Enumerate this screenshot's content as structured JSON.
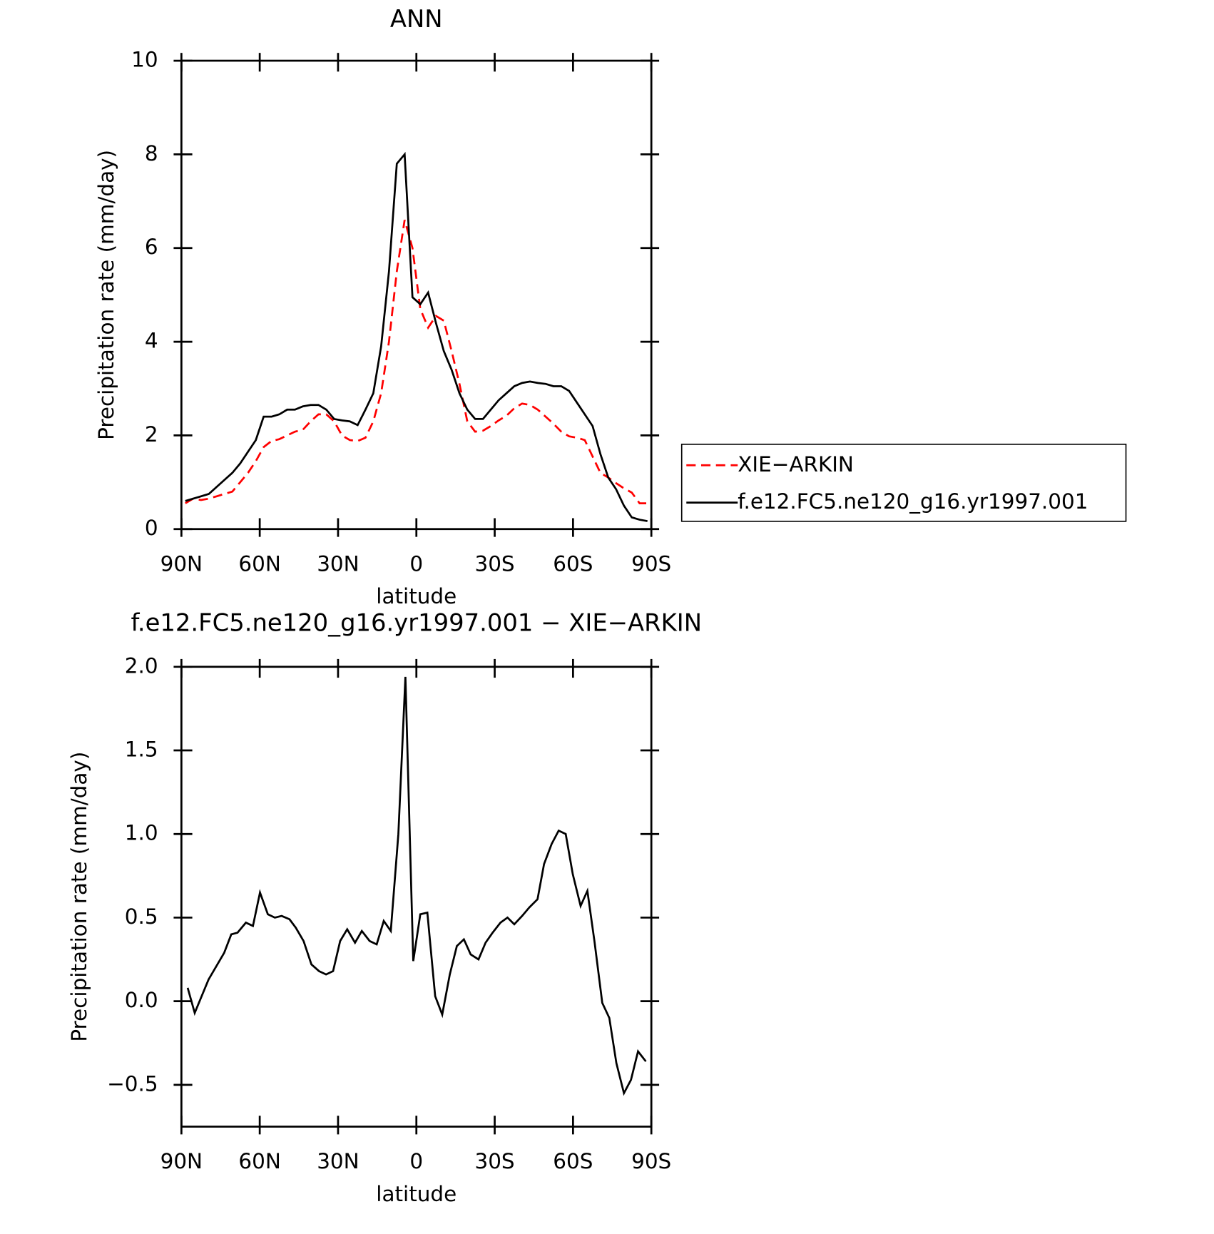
{
  "chart_data": [
    {
      "type": "line",
      "title": "ANN",
      "xlabel": "latitude",
      "ylabel": "Precipitation rate (mm/day)",
      "x": [
        88.5,
        85.5,
        82.5,
        79.5,
        76.5,
        73.5,
        70.5,
        67.5,
        64.5,
        61.5,
        58.5,
        55.5,
        52.5,
        49.5,
        46.5,
        43.5,
        40.5,
        37.5,
        34.5,
        31.5,
        28.5,
        25.5,
        22.5,
        19.5,
        16.5,
        13.5,
        10.5,
        7.5,
        4.5,
        1.5,
        -1.5,
        -4.5,
        -7.5,
        -10.5,
        -13.5,
        -16.5,
        -19.5,
        -22.5,
        -25.5,
        -28.5,
        -31.5,
        -34.5,
        -37.5,
        -40.5,
        -43.5,
        -46.5,
        -49.5,
        -52.5,
        -55.5,
        -58.5,
        -61.5,
        -64.5,
        -67.5,
        -70.5,
        -73.5,
        -76.5,
        -79.5,
        -82.5,
        -85.5,
        -88.5
      ],
      "series": [
        {
          "name": "XIE−ARKIN",
          "color": "#ff0000",
          "dash": true,
          "values": [
            0.55,
            0.65,
            0.62,
            0.65,
            0.7,
            0.75,
            0.8,
            1.0,
            1.2,
            1.45,
            1.75,
            1.88,
            1.92,
            2.0,
            2.08,
            2.12,
            2.3,
            2.45,
            2.45,
            2.3,
            2.0,
            1.9,
            1.88,
            1.95,
            2.3,
            2.9,
            4.0,
            5.5,
            6.6,
            6.0,
            4.7,
            4.3,
            4.55,
            4.45,
            3.8,
            3.1,
            2.3,
            2.08,
            2.1,
            2.2,
            2.32,
            2.42,
            2.58,
            2.68,
            2.65,
            2.55,
            2.4,
            2.25,
            2.08,
            1.98,
            1.95,
            1.9,
            1.55,
            1.2,
            1.1,
            0.98,
            0.87,
            0.78,
            0.55,
            0.55
          ]
        },
        {
          "name": "f.e12.FC5.ne120_g16.yr1997.001",
          "color": "#000000",
          "dash": false,
          "values": [
            0.6,
            0.65,
            0.7,
            0.75,
            0.9,
            1.05,
            1.2,
            1.4,
            1.65,
            1.9,
            2.4,
            2.4,
            2.45,
            2.55,
            2.55,
            2.62,
            2.65,
            2.65,
            2.55,
            2.35,
            2.32,
            2.3,
            2.22,
            2.55,
            2.9,
            3.9,
            5.5,
            7.8,
            8.0,
            4.95,
            4.8,
            5.05,
            4.4,
            3.8,
            3.4,
            2.9,
            2.55,
            2.35,
            2.35,
            2.55,
            2.75,
            2.9,
            3.05,
            3.12,
            3.15,
            3.12,
            3.1,
            3.05,
            3.05,
            2.95,
            2.7,
            2.45,
            2.2,
            1.6,
            1.1,
            0.85,
            0.5,
            0.25,
            0.2,
            0.17
          ]
        }
      ],
      "xlim": [
        90,
        -90
      ],
      "xticks": [
        {
          "value": 90,
          "label": "90N"
        },
        {
          "value": 60,
          "label": "60N"
        },
        {
          "value": 30,
          "label": "30N"
        },
        0,
        {
          "value": -30,
          "label": "30S"
        },
        {
          "value": -60,
          "label": "60S"
        },
        {
          "value": -90,
          "label": "90S"
        }
      ],
      "ylim": [
        0,
        10
      ],
      "yticks": [
        0,
        2,
        4,
        6,
        8,
        10
      ],
      "legend": "right"
    },
    {
      "type": "line",
      "title": "f.e12.FC5.ne120_g16.yr1997.001 − XIE−ARKIN",
      "xlabel": "latitude",
      "ylabel": "Precipitation rate (mm/day)",
      "x": [
        87.6,
        84.9,
        79.6,
        73.6,
        70.9,
        68.5,
        65.3,
        62.6,
        59.9,
        56.9,
        54.2,
        51.6,
        48.6,
        46.2,
        43.2,
        40.2,
        37.3,
        34.6,
        31.9,
        29.2,
        26.5,
        23.5,
        20.9,
        17.9,
        15.2,
        12.5,
        9.8,
        6.9,
        4.2,
        1.2,
        -1.5,
        -4.2,
        -7.2,
        -9.9,
        -12.8,
        -15.5,
        -18.2,
        -20.8,
        -23.8,
        -26.5,
        -29.2,
        -32.2,
        -34.9,
        -37.5,
        -40.5,
        -43.2,
        -46.4,
        -48.9,
        -51.8,
        -54.5,
        -57.2,
        -59.9,
        -62.9,
        -65.5,
        -68.2,
        -71.2,
        -73.9,
        -76.6,
        -79.5,
        -82.2,
        -84.9,
        -87.9
      ],
      "series": [
        {
          "color": "#000000",
          "values": [
            0.08,
            -0.07,
            0.13,
            0.29,
            0.4,
            0.41,
            0.47,
            0.45,
            0.65,
            0.52,
            0.5,
            0.51,
            0.49,
            0.44,
            0.36,
            0.22,
            0.18,
            0.16,
            0.18,
            0.36,
            0.43,
            0.35,
            0.42,
            0.36,
            0.34,
            0.48,
            0.42,
            1.0,
            1.94,
            0.24,
            0.52,
            0.53,
            0.03,
            -0.08,
            0.16,
            0.33,
            0.37,
            0.28,
            0.25,
            0.35,
            0.41,
            0.47,
            0.5,
            0.46,
            0.51,
            0.56,
            0.61,
            0.82,
            0.94,
            1.02,
            1.0,
            0.76,
            0.57,
            0.66,
            0.36,
            -0.01,
            -0.1,
            -0.37,
            -0.55,
            -0.47,
            -0.3,
            -0.36
          ]
        }
      ],
      "xlim": [
        90,
        -90
      ],
      "xticks": [
        {
          "value": 90,
          "label": "90N"
        },
        {
          "value": 60,
          "label": "60N"
        },
        {
          "value": 30,
          "label": "30N"
        },
        0,
        {
          "value": -30,
          "label": "30S"
        },
        {
          "value": -60,
          "label": "60S"
        },
        {
          "value": -90,
          "label": "90S"
        }
      ],
      "ylim": [
        -0.75,
        2.0
      ],
      "yticks": [
        {
          "value": -0.5,
          "label": "−0.5"
        },
        {
          "value": 0,
          "label": "0.0"
        },
        0.5,
        {
          "value": 1,
          "label": "1.0"
        },
        1.5,
        {
          "value": 2,
          "label": "2.0"
        }
      ]
    }
  ]
}
